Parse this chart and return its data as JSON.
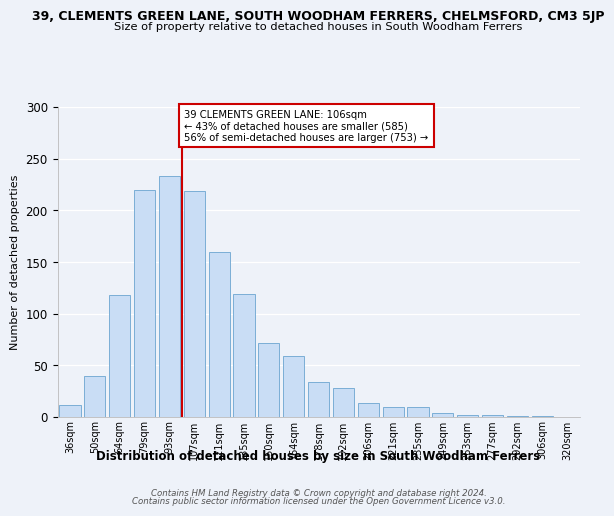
{
  "title": "39, CLEMENTS GREEN LANE, SOUTH WOODHAM FERRERS, CHELMSFORD, CM3 5JP",
  "subtitle": "Size of property relative to detached houses in South Woodham Ferrers",
  "xlabel": "Distribution of detached houses by size in South Woodham Ferrers",
  "ylabel": "Number of detached properties",
  "bar_labels": [
    "36sqm",
    "50sqm",
    "64sqm",
    "79sqm",
    "93sqm",
    "107sqm",
    "121sqm",
    "135sqm",
    "150sqm",
    "164sqm",
    "178sqm",
    "192sqm",
    "206sqm",
    "221sqm",
    "235sqm",
    "249sqm",
    "263sqm",
    "277sqm",
    "292sqm",
    "306sqm",
    "320sqm"
  ],
  "bar_values": [
    12,
    40,
    118,
    220,
    233,
    219,
    160,
    119,
    72,
    59,
    34,
    28,
    14,
    10,
    10,
    4,
    2,
    2,
    1,
    1,
    0
  ],
  "bar_color": "#c9ddf5",
  "bar_edge_color": "#7aaed6",
  "highlight_bar_index": 5,
  "highlight_color": "#cc0000",
  "annotation_line1": "39 CLEMENTS GREEN LANE: 106sqm",
  "annotation_line2": "← 43% of detached houses are smaller (585)",
  "annotation_line3": "56% of semi-detached houses are larger (753) →",
  "annotation_box_color": "#ffffff",
  "annotation_box_edge": "#cc0000",
  "ylim": [
    0,
    300
  ],
  "yticks": [
    0,
    50,
    100,
    150,
    200,
    250,
    300
  ],
  "footer1": "Contains HM Land Registry data © Crown copyright and database right 2024.",
  "footer2": "Contains public sector information licensed under the Open Government Licence v3.0.",
  "background_color": "#eef2f9"
}
